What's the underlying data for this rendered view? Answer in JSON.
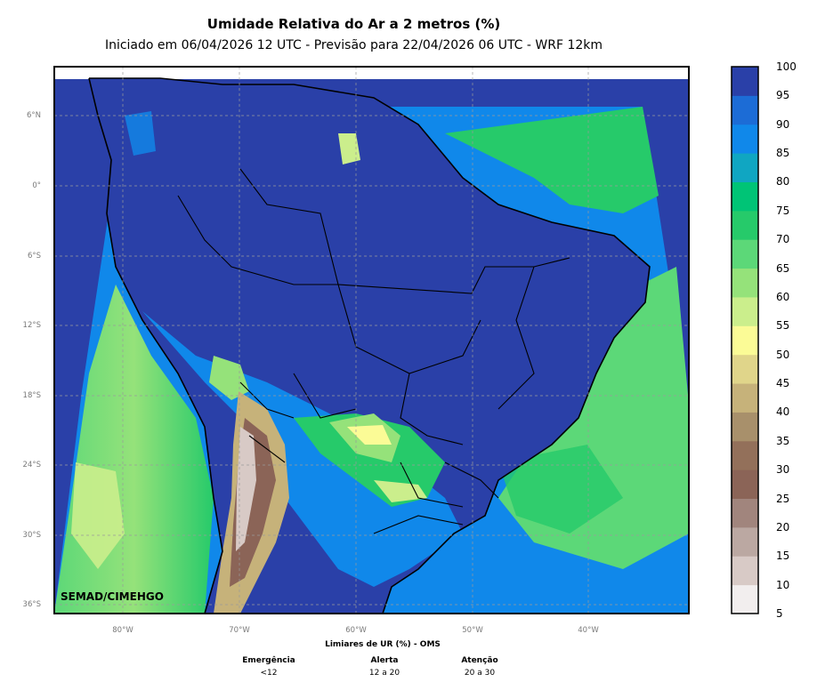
{
  "header": {
    "title": "Umidade Relativa do Ar a 2 metros (%)",
    "subtitle": "Iniciado em 06/04/2026 12 UTC - Previsão para 22/04/2026 06 UTC - WRF 12km"
  },
  "map": {
    "credit": "SEMAD/CIMEHGO",
    "lat_labels": [
      "6°N",
      "0°",
      "6°S",
      "12°S",
      "18°S",
      "24°S",
      "30°S",
      "36°S"
    ],
    "lon_labels": [
      "80°W",
      "70°W",
      "60°W",
      "50°W",
      "40°W"
    ],
    "gridlines": true
  },
  "colorbar": {
    "ticks": [
      "100",
      "95",
      "90",
      "85",
      "80",
      "75",
      "70",
      "65",
      "60",
      "55",
      "50",
      "45",
      "40",
      "35",
      "30",
      "25",
      "20",
      "15",
      "10",
      "5"
    ],
    "colors": [
      "#f2eeee",
      "#d8cac6",
      "#bba8a2",
      "#a1857d",
      "#8b6457",
      "#93705a",
      "#a8906b",
      "#c6b27a",
      "#e0d58a",
      "#fbfb96",
      "#cbee8c",
      "#95e27a",
      "#5cd878",
      "#26ca6a",
      "#00c476",
      "#10a6c2",
      "#1088ea",
      "#1c6cd6",
      "#2a40a8"
    ]
  },
  "legend_oms": {
    "title": "Limiares de UR (%) - OMS",
    "levels": [
      {
        "name": "Emergência",
        "range": "<12"
      },
      {
        "name": "Alerta",
        "range": "12 a 20"
      },
      {
        "name": "Atenção",
        "range": "20 a 30"
      }
    ]
  }
}
